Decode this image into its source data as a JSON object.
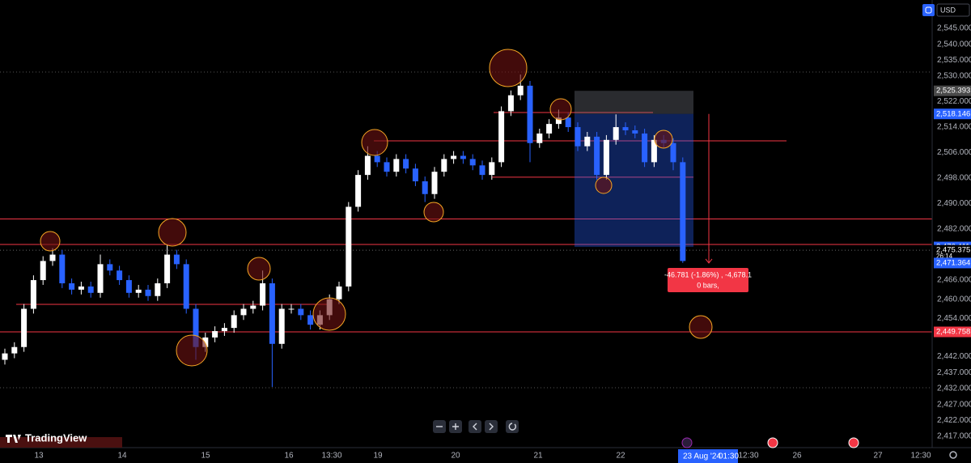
{
  "chart_data": {
    "type": "candlestick",
    "currency": "USD",
    "brand": "TradingView",
    "up_color": "#ffffff",
    "down_color": "#2962ff",
    "level_color": "#f23645",
    "ylim": [
      2413.44,
      2553.89
    ],
    "yticks": [
      {
        "value": 2545,
        "label": "2,545.000"
      },
      {
        "value": 2540,
        "label": "2,540.000"
      },
      {
        "value": 2535,
        "label": "2,535.000"
      },
      {
        "value": 2530,
        "label": "2,530.000"
      },
      {
        "value": 2522,
        "label": "2,522.000"
      },
      {
        "value": 2514,
        "label": "2,514.000"
      },
      {
        "value": 2506,
        "label": "2,506.000"
      },
      {
        "value": 2498,
        "label": "2,498.000"
      },
      {
        "value": 2490,
        "label": "2,490.000"
      },
      {
        "value": 2482,
        "label": "2,482.000"
      },
      {
        "value": 2466,
        "label": "2,466.000"
      },
      {
        "value": 2460,
        "label": "2,460.000"
      },
      {
        "value": 2454,
        "label": "2,454.000"
      },
      {
        "value": 2442,
        "label": "2,442.000"
      },
      {
        "value": 2437,
        "label": "2,437.000"
      },
      {
        "value": 2432,
        "label": "2,432.000"
      },
      {
        "value": 2427,
        "label": "2,427.000"
      },
      {
        "value": 2422,
        "label": "2,422.000"
      },
      {
        "value": 2417,
        "label": "2,417.000"
      }
    ],
    "x_labels": [
      "13",
      "14",
      "15",
      "16",
      "13:30",
      "19",
      "20",
      "21",
      "22",
      "12:30",
      "26",
      "27",
      "12:30"
    ],
    "crosshair_date": "23 Aug '24",
    "crosshair_time": "01:30",
    "open": [
      2441,
      2443,
      2445,
      2457,
      2466,
      2472,
      2474,
      2465,
      2463,
      2464,
      2462,
      2471,
      2469,
      2466,
      2462,
      2463,
      2461,
      2465,
      2474,
      2471,
      2457,
      2445,
      2448,
      2450,
      2451,
      2455,
      2457,
      2458,
      2465,
      2446,
      2457,
      2457,
      2455,
      2452,
      2455,
      2460,
      2464,
      2489,
      2499,
      2505,
      2503,
      2500,
      2504,
      2501,
      2497,
      2493,
      2500,
      2504,
      2505,
      2504,
      2502,
      2499,
      2503,
      2519,
      2524,
      2527,
      2509,
      2512,
      2515,
      2517,
      2514,
      2508,
      2511,
      2499,
      2510,
      2514,
      2513,
      2512,
      2503,
      2510,
      2509,
      2503
    ],
    "high": [
      2444.5,
      2446.5,
      2458.5,
      2467.5,
      2473.5,
      2476,
      2475.5,
      2466.5,
      2465.5,
      2465.5,
      2474,
      2472.5,
      2470.5,
      2467.5,
      2464.5,
      2464.5,
      2466.5,
      2477,
      2475.5,
      2472.5,
      2458.5,
      2449.5,
      2451.5,
      2452.5,
      2456.5,
      2458.5,
      2459.5,
      2469,
      2466.5,
      2458.5,
      2458.5,
      2458.5,
      2456.5,
      2456.5,
      2461.5,
      2465.5,
      2490.5,
      2500.5,
      2508,
      2506.5,
      2504.5,
      2505.5,
      2505.5,
      2502.5,
      2498.5,
      2501.5,
      2505.5,
      2506.5,
      2506.5,
      2505.5,
      2503.5,
      2504.5,
      2520.5,
      2525.5,
      2530.5,
      2528.5,
      2513.5,
      2516.5,
      2519.5,
      2518.5,
      2515.5,
      2512.5,
      2512.5,
      2511.5,
      2518,
      2515.5,
      2514.5,
      2513.5,
      2511.5,
      2511.5,
      2510.5,
      2504.5
    ],
    "low": [
      2439.5,
      2441.5,
      2443.5,
      2455.5,
      2464.5,
      2470.5,
      2463.5,
      2461.5,
      2461.5,
      2460.5,
      2460.5,
      2467.5,
      2464.5,
      2460.5,
      2460.5,
      2459.5,
      2459.5,
      2463.5,
      2469.5,
      2455.5,
      2441,
      2443.5,
      2446.5,
      2448.5,
      2449.5,
      2453.5,
      2455.5,
      2456.5,
      2432.5,
      2444.5,
      2455.5,
      2453.5,
      2450.5,
      2450.5,
      2453.5,
      2458.5,
      2462.5,
      2487.5,
      2497.5,
      2501.5,
      2498.5,
      2498.5,
      2499.5,
      2495.5,
      2490.5,
      2491.5,
      2498.5,
      2502.5,
      2502.5,
      2500.5,
      2497.5,
      2497.5,
      2501.5,
      2517.5,
      2522.5,
      2503,
      2507.5,
      2510.5,
      2513.5,
      2512.5,
      2506.5,
      2506.5,
      2497.5,
      2497.5,
      2508.5,
      2511.5,
      2510.5,
      2501.5,
      2501.5,
      2507.5,
      2500.5,
      2471.4
    ],
    "close": [
      2443,
      2445,
      2457,
      2466,
      2472,
      2474,
      2465,
      2463,
      2464,
      2462,
      2471,
      2469,
      2466,
      2462,
      2463,
      2461,
      2465,
      2474,
      2471,
      2457,
      2445,
      2448,
      2450,
      2451,
      2455,
      2457,
      2458,
      2465,
      2446,
      2457,
      2457,
      2455,
      2452,
      2455,
      2460,
      2464,
      2489,
      2499,
      2505,
      2503,
      2500,
      2504,
      2501,
      2497,
      2493,
      2500,
      2504,
      2505,
      2504,
      2502,
      2499,
      2503,
      2519,
      2524,
      2527,
      2509,
      2512,
      2515,
      2517,
      2514,
      2508,
      2511,
      2499,
      2510,
      2514,
      2513,
      2512,
      2503,
      2510,
      2509,
      2503,
      2472
    ],
    "levels": [
      2485.2,
      2477.2,
      2449.758,
      2458.4,
      2509.7,
      2518.6,
      2498.3
    ],
    "price_labels": [
      {
        "value": 2525.393,
        "label": "2,525.393",
        "color": "#4a4a4a"
      },
      {
        "value": 2518.146,
        "label": "2,518.146",
        "color": "#2962ff"
      },
      {
        "value": 2476.411,
        "label": "2,476.411",
        "color": "#2962ff"
      },
      {
        "value": 2475.375,
        "label": "2,475.375",
        "color": "#000000"
      },
      {
        "value": 2471.364,
        "label": "2,471.364",
        "color": "#2962ff"
      },
      {
        "value": 2449.758,
        "label": "2,449.758",
        "color": "#f23645"
      }
    ],
    "countdown": "26:14",
    "measure": {
      "line1": "-46.781 (-1.86%) , -4,678.1",
      "line2": "0 bars,"
    }
  }
}
